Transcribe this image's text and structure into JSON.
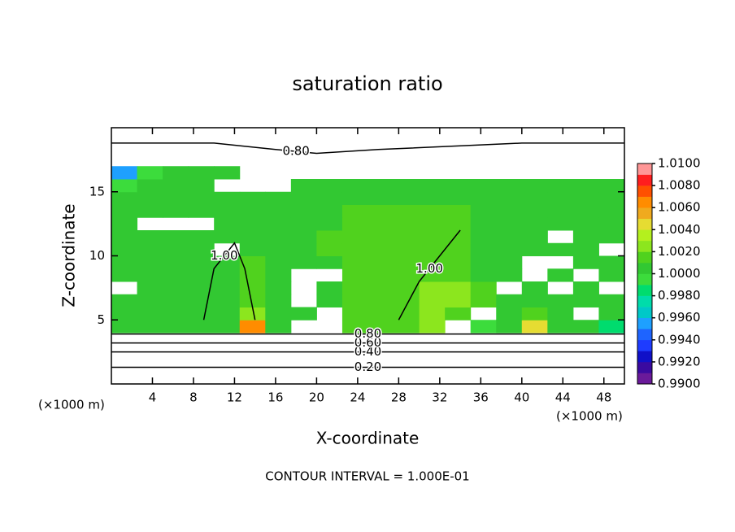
{
  "chart_data": {
    "type": "contour",
    "title": "saturation ratio",
    "x_label": "X-coordinate",
    "y_label": "Z-coordinate",
    "x_unit": "(×1000 m)",
    "footer": "CONTOUR INTERVAL = 1.000E-01",
    "xlim": [
      0,
      50
    ],
    "ylim": [
      0,
      20
    ],
    "xticks": [
      4,
      8,
      12,
      16,
      20,
      24,
      28,
      32,
      36,
      40,
      44,
      48
    ],
    "yticks": [
      5,
      10,
      15
    ],
    "field": {
      "x": [
        1.25,
        3.75,
        6.25,
        8.75,
        11.25,
        13.75,
        16.25,
        18.75,
        21.25,
        23.75,
        26.25,
        28.75,
        31.25,
        33.75,
        36.25,
        38.75,
        41.25,
        43.75,
        46.25,
        48.75
      ],
      "y": [
        4.5,
        5.5,
        6.5,
        7.5,
        8.5,
        9.5,
        10.5,
        11.5,
        12.5,
        13.5,
        14.5,
        15.5,
        16.5
      ],
      "values": [
        [
          1.0005,
          1.0005,
          1.0008,
          1.0008,
          1.001,
          1.006,
          1.001,
          null,
          null,
          1.0015,
          1.0015,
          1.0015,
          1.002,
          null,
          0.999,
          1.0008,
          1.004,
          1.0008,
          1.0008,
          0.998
        ],
        [
          1.0005,
          1.0008,
          1.0008,
          1.0008,
          1.001,
          1.003,
          1.001,
          1.0005,
          null,
          1.0012,
          1.0015,
          1.0018,
          1.002,
          1.0015,
          null,
          1.0008,
          1.0012,
          1.0008,
          null,
          1.0005
        ],
        [
          1.0005,
          1.0008,
          1.0008,
          1.001,
          1.001,
          1.0015,
          1.001,
          null,
          1.0005,
          1.0012,
          1.0015,
          1.0018,
          1.002,
          1.0025,
          1.0015,
          1.001,
          1.001,
          1.0008,
          1.0005,
          1.0005
        ],
        [
          null,
          1.0005,
          1.0008,
          1.001,
          1.001,
          1.0012,
          1.0008,
          null,
          1.0008,
          1.0012,
          1.0015,
          1.0018,
          1.002,
          1.002,
          1.0012,
          null,
          1.001,
          null,
          1.0005,
          null
        ],
        [
          1.0005,
          1.0005,
          1.0008,
          1.001,
          1.001,
          1.0012,
          1.0008,
          null,
          null,
          1.0012,
          1.0015,
          1.0018,
          1.0018,
          1.0015,
          1.001,
          1.0008,
          null,
          1.0008,
          null,
          1.0005
        ],
        [
          1.0005,
          1.0008,
          1.0008,
          1.001,
          1.001,
          1.0012,
          1.001,
          1.0008,
          1.001,
          1.0012,
          1.0015,
          1.0015,
          1.0015,
          1.0015,
          1.001,
          1.0008,
          null,
          null,
          1.0005,
          1.0005
        ],
        [
          1.0005,
          1.0008,
          1.0008,
          1.0008,
          null,
          1.001,
          1.001,
          1.001,
          1.0012,
          1.0015,
          1.0015,
          1.0015,
          1.0015,
          1.0012,
          1.001,
          1.0008,
          1.0008,
          1.0005,
          1.0005,
          null
        ],
        [
          1.0005,
          1.0005,
          1.0008,
          1.0008,
          1.0008,
          1.001,
          1.001,
          1.001,
          1.0012,
          1.0015,
          1.0015,
          1.0015,
          1.0015,
          1.0012,
          1.001,
          1.001,
          1.0008,
          null,
          1.0005,
          1.0005
        ],
        [
          1.0005,
          null,
          null,
          null,
          1.0008,
          1.001,
          1.001,
          1.001,
          1.001,
          1.0012,
          1.0012,
          1.0012,
          1.0012,
          1.0012,
          1.001,
          1.001,
          1.0008,
          1.0008,
          1.0005,
          1.0005
        ],
        [
          1.0008,
          1.0008,
          1.0005,
          1.0008,
          1.0008,
          1.0008,
          1.001,
          1.001,
          1.001,
          1.0012,
          1.0012,
          1.0012,
          1.0012,
          1.0012,
          1.001,
          1.001,
          1.0008,
          1.0008,
          1.0008,
          1.0005
        ],
        [
          1.0005,
          1.001,
          1.0008,
          1.0008,
          1.0005,
          1.0005,
          1.0008,
          1.0008,
          1.001,
          1.001,
          1.001,
          1.001,
          1.001,
          1.001,
          1.001,
          1.0008,
          1.0008,
          1.0008,
          1.0008,
          1.0005
        ],
        [
          0.9995,
          1.0005,
          1.0008,
          1.0008,
          null,
          null,
          null,
          1.0005,
          1.0008,
          1.0008,
          1.0008,
          1.0008,
          1.0008,
          1.0008,
          1.0008,
          1.0008,
          1.0008,
          1.0008,
          1.0005,
          1.0005
        ],
        [
          0.995,
          0.999,
          1.0005,
          1.0005,
          1.0005,
          null,
          null,
          null,
          null,
          null,
          null,
          null,
          null,
          null,
          null,
          null,
          null,
          null,
          null,
          null
        ]
      ]
    },
    "contours": [
      {
        "label": "0.20",
        "x": [
          0,
          50
        ],
        "y": [
          1.3,
          1.3
        ]
      },
      {
        "label": "0.40",
        "x": [
          0,
          50
        ],
        "y": [
          2.5,
          2.5
        ]
      },
      {
        "label": "0.60",
        "x": [
          0,
          50
        ],
        "y": [
          3.2,
          3.2
        ]
      },
      {
        "label": "0.80",
        "x": [
          0,
          50
        ],
        "y": [
          3.9,
          3.9
        ]
      },
      {
        "label": "0.80",
        "x": [
          0,
          10,
          16,
          20,
          26,
          40,
          50
        ],
        "y": [
          18.8,
          18.8,
          18.3,
          18.0,
          18.3,
          18.8,
          18.8
        ]
      },
      {
        "label": "1.00",
        "x": [
          9,
          10,
          12,
          13,
          14
        ],
        "y": [
          5,
          9,
          11,
          9,
          5
        ]
      },
      {
        "label": "1.00",
        "x": [
          28,
          30,
          32,
          34
        ],
        "y": [
          5,
          8,
          10,
          12
        ]
      }
    ],
    "colorbar": {
      "ticks": [
        {
          "value": 0.99,
          "label": "0.9900"
        },
        {
          "value": 0.992,
          "label": "0.9920"
        },
        {
          "value": 0.994,
          "label": "0.9940"
        },
        {
          "value": 0.996,
          "label": "0.9960"
        },
        {
          "value": 0.998,
          "label": "0.9980"
        },
        {
          "value": 1.0,
          "label": "1.0000"
        },
        {
          "value": 1.002,
          "label": "1.0020"
        },
        {
          "value": 1.004,
          "label": "1.0040"
        },
        {
          "value": 1.006,
          "label": "1.0060"
        },
        {
          "value": 1.008,
          "label": "1.0080"
        },
        {
          "value": 1.01,
          "label": "1.0100"
        }
      ],
      "colors": [
        "#6a1a9a",
        "#3a0aa0",
        "#1010c8",
        "#1e3cff",
        "#1e64ff",
        "#1ea0ff",
        "#00c8c8",
        "#00dcaa",
        "#00dc6e",
        "#3cdc3c",
        "#32c832",
        "#50d21e",
        "#8ce61e",
        "#b4f01e",
        "#e6dc32",
        "#f0aa1e",
        "#ff8c00",
        "#ff5000",
        "#ff1e1e",
        "#ff9696"
      ]
    }
  }
}
